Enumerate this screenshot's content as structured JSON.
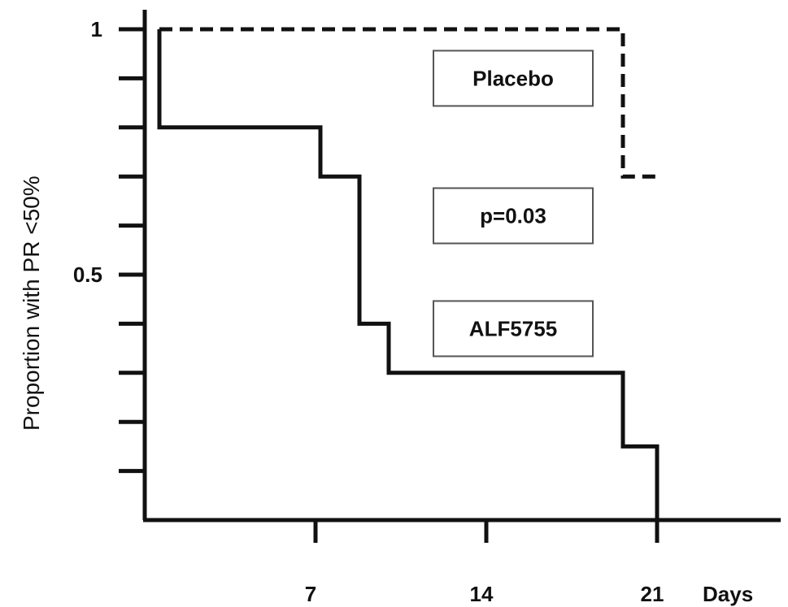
{
  "chart_data": {
    "type": "line",
    "step": true,
    "ylabel": "Proportion with  PR <50%",
    "xlabel": "Days",
    "xlim": [
      0,
      26
    ],
    "ylim": [
      0,
      1
    ],
    "x_ticks": [
      {
        "value": 7,
        "label": "7"
      },
      {
        "value": 14,
        "label": "14"
      },
      {
        "value": 21,
        "label": "21"
      }
    ],
    "y_ticks": [
      {
        "value": 1,
        "label": "1"
      },
      {
        "value": 0.5,
        "label": "0.5"
      }
    ],
    "y_minor_ticks": [
      0.1,
      0.2,
      0.3,
      0.4,
      0.6,
      0.7,
      0.8,
      0.9
    ],
    "series": [
      {
        "name": "Placebo",
        "style": "dashed",
        "x": [
          0.6,
          19.6,
          19.6,
          21.0
        ],
        "y": [
          1.0,
          1.0,
          0.7,
          0.7
        ]
      },
      {
        "name": "ALF5755",
        "style": "solid",
        "x": [
          0.6,
          0.6,
          7.2,
          7.2,
          8.8,
          8.8,
          10.0,
          10.0,
          19.6,
          19.6,
          21.0,
          21.0
        ],
        "y": [
          1.0,
          0.8,
          0.8,
          0.7,
          0.7,
          0.4,
          0.4,
          0.3,
          0.3,
          0.15,
          0.15,
          0.0
        ]
      }
    ],
    "annotations": [
      {
        "id": "placebo",
        "text": "Placebo",
        "x": 15.1,
        "y": 0.9
      },
      {
        "id": "pvalue",
        "text": "p=0.03",
        "x": 15.1,
        "y": 0.62
      },
      {
        "id": "alf",
        "text": "ALF5755",
        "x": 15.1,
        "y": 0.39
      }
    ],
    "grid": false,
    "colors": {
      "line": "#111111",
      "background": "#ffffff"
    }
  }
}
